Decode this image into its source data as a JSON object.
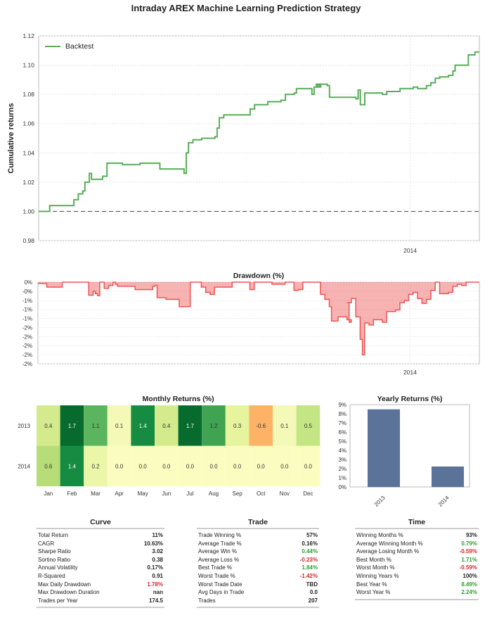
{
  "title": "Intraday AREX Machine Learning Prediction Strategy",
  "chart_data": [
    {
      "type": "line",
      "ylabel": "Cumulative returns",
      "ylim": [
        0.98,
        1.12
      ],
      "yticks": [
        "0.98",
        "1.00",
        "1.02",
        "1.04",
        "1.06",
        "1.08",
        "1.10",
        "1.12"
      ],
      "xticks": [
        "2014"
      ],
      "legend_position": "top-left",
      "grid": true,
      "baseline": 1.0,
      "series": [
        {
          "name": "Backtest",
          "color": "#5aad5a",
          "points": [
            [
              0,
              1.0
            ],
            [
              0.02,
              1.0
            ],
            [
              0.025,
              1.004
            ],
            [
              0.07,
              1.004
            ],
            [
              0.08,
              1.008
            ],
            [
              0.09,
              1.012
            ],
            [
              0.1,
              1.014
            ],
            [
              0.105,
              1.02
            ],
            [
              0.115,
              1.026
            ],
            [
              0.12,
              1.022
            ],
            [
              0.145,
              1.024
            ],
            [
              0.155,
              1.033
            ],
            [
              0.19,
              1.032
            ],
            [
              0.23,
              1.033
            ],
            [
              0.27,
              1.033
            ],
            [
              0.275,
              1.029
            ],
            [
              0.32,
              1.029
            ],
            [
              0.33,
              1.026
            ],
            [
              0.335,
              1.04
            ],
            [
              0.34,
              1.047
            ],
            [
              0.35,
              1.049
            ],
            [
              0.37,
              1.05
            ],
            [
              0.38,
              1.05
            ],
            [
              0.4,
              1.051
            ],
            [
              0.405,
              1.057
            ],
            [
              0.41,
              1.064
            ],
            [
              0.42,
              1.066
            ],
            [
              0.47,
              1.066
            ],
            [
              0.48,
              1.07
            ],
            [
              0.49,
              1.073
            ],
            [
              0.52,
              1.075
            ],
            [
              0.55,
              1.076
            ],
            [
              0.56,
              1.08
            ],
            [
              0.58,
              1.081
            ],
            [
              0.585,
              1.084
            ],
            [
              0.6,
              1.084
            ],
            [
              0.62,
              1.08
            ],
            [
              0.625,
              1.085
            ],
            [
              0.64,
              1.086
            ],
            [
              0.63,
              1.087
            ],
            [
              0.655,
              1.086
            ],
            [
              0.66,
              1.078
            ],
            [
              0.7,
              1.078
            ],
            [
              0.72,
              1.077
            ],
            [
              0.725,
              1.083
            ],
            [
              0.73,
              1.073
            ],
            [
              0.74,
              1.081
            ],
            [
              0.78,
              1.08
            ],
            [
              0.79,
              1.082
            ],
            [
              0.82,
              1.084
            ],
            [
              0.85,
              1.085
            ],
            [
              0.86,
              1.084
            ],
            [
              0.88,
              1.086
            ],
            [
              0.89,
              1.088
            ],
            [
              0.9,
              1.091
            ],
            [
              0.91,
              1.092
            ],
            [
              0.93,
              1.093
            ],
            [
              0.94,
              1.096
            ],
            [
              0.945,
              1.1
            ],
            [
              0.97,
              1.1
            ],
            [
              0.975,
              1.107
            ],
            [
              0.99,
              1.109
            ],
            [
              1.0,
              1.109
            ]
          ]
        }
      ]
    },
    {
      "type": "area",
      "title": "Drawdown (%)",
      "yticks": [
        "0%",
        "-0%",
        "-0%",
        "-0%",
        "-1%",
        "-1%",
        "-1%",
        "-1%",
        "-1%",
        "-1%",
        "-2%",
        "-2%",
        "-2%",
        "-2%",
        "-2%",
        "-2%",
        "-2%",
        "-2%",
        "-2%",
        "-2%"
      ],
      "xticks": [
        "2014"
      ],
      "ymin": -1.78,
      "grid": true,
      "color": "#ee5555",
      "points": [
        [
          0,
          -0.03
        ],
        [
          0.02,
          -0.12
        ],
        [
          0.05,
          -0.12
        ],
        [
          0.055,
          0
        ],
        [
          0.11,
          0
        ],
        [
          0.115,
          -0.32
        ],
        [
          0.125,
          -0.22
        ],
        [
          0.13,
          -0.28
        ],
        [
          0.135,
          -0.33
        ],
        [
          0.14,
          0
        ],
        [
          0.15,
          -0.15
        ],
        [
          0.16,
          -0.08
        ],
        [
          0.17,
          0
        ],
        [
          0.175,
          -0.05
        ],
        [
          0.18,
          -0.1
        ],
        [
          0.21,
          -0.1
        ],
        [
          0.22,
          -0.18
        ],
        [
          0.26,
          -0.1
        ],
        [
          0.265,
          -0.08
        ],
        [
          0.27,
          -0.38
        ],
        [
          0.29,
          -0.42
        ],
        [
          0.3,
          -0.42
        ],
        [
          0.32,
          -0.6
        ],
        [
          0.335,
          -0.6
        ],
        [
          0.345,
          0
        ],
        [
          0.37,
          -0.12
        ],
        [
          0.38,
          -0.25
        ],
        [
          0.39,
          -0.3
        ],
        [
          0.4,
          -0.12
        ],
        [
          0.43,
          -0.12
        ],
        [
          0.44,
          0
        ],
        [
          0.47,
          0
        ],
        [
          0.48,
          -0.18
        ],
        [
          0.49,
          0
        ],
        [
          0.52,
          0
        ],
        [
          0.53,
          -0.05
        ],
        [
          0.56,
          0
        ],
        [
          0.58,
          -0.2
        ],
        [
          0.59,
          -0.18
        ],
        [
          0.6,
          0
        ],
        [
          0.63,
          0
        ],
        [
          0.64,
          -0.3
        ],
        [
          0.65,
          -0.42
        ],
        [
          0.66,
          -0.6
        ],
        [
          0.665,
          -0.95
        ],
        [
          0.68,
          -0.85
        ],
        [
          0.7,
          -0.92
        ],
        [
          0.705,
          -0.98
        ],
        [
          0.71,
          -0.92
        ],
        [
          0.705,
          -0.5
        ],
        [
          0.7,
          -0.5
        ],
        [
          0.71,
          -0.4
        ],
        [
          0.72,
          -0.85
        ],
        [
          0.73,
          -1.4
        ],
        [
          0.735,
          -1.78
        ],
        [
          0.74,
          -1.0
        ],
        [
          0.75,
          -1.05
        ],
        [
          0.76,
          -0.92
        ],
        [
          0.78,
          -0.98
        ],
        [
          0.79,
          -0.72
        ],
        [
          0.8,
          -0.72
        ],
        [
          0.81,
          -0.68
        ],
        [
          0.82,
          -0.5
        ],
        [
          0.83,
          -0.45
        ],
        [
          0.84,
          -0.3
        ],
        [
          0.85,
          -0.25
        ],
        [
          0.86,
          -0.4
        ],
        [
          0.87,
          -0.52
        ],
        [
          0.88,
          -0.42
        ],
        [
          0.89,
          -0.2
        ],
        [
          0.9,
          0
        ],
        [
          0.91,
          -0.28
        ],
        [
          0.93,
          -0.25
        ],
        [
          0.94,
          -0.1
        ],
        [
          0.95,
          -0.05
        ],
        [
          0.96,
          -0.08
        ],
        [
          0.97,
          0
        ],
        [
          1.0,
          0
        ]
      ]
    },
    {
      "type": "heatmap",
      "title": "Monthly Returns (%)",
      "rows": [
        "2013",
        "2014"
      ],
      "columns": [
        "Jan",
        "Feb",
        "Mar",
        "Apr",
        "May",
        "Jun",
        "Jul",
        "Aug",
        "Sep",
        "Oct",
        "Nov",
        "Dec"
      ],
      "values": [
        [
          0.4,
          1.7,
          1.1,
          0.1,
          1.4,
          0.4,
          1.7,
          1.2,
          0.3,
          -0.6,
          0.1,
          0.5
        ],
        [
          0.6,
          1.4,
          0.2,
          0.0,
          0.0,
          0.0,
          0.0,
          0.0,
          0.0,
          0.0,
          0.0,
          0.0
        ]
      ],
      "labels": [
        [
          "0.4",
          "1.7",
          "1.1",
          "0.1",
          "1.4",
          "0.4",
          "1.7",
          "1.2",
          "0.3",
          "-0.6",
          "0.1",
          "0.5"
        ],
        [
          "0.6",
          "1.4",
          "0.2",
          "0.0",
          "0.0",
          "0.0",
          "0.0",
          "0.0",
          "0.0",
          "0.0",
          "0.0",
          "0.0"
        ]
      ],
      "colors": [
        [
          "#d3eb8c",
          "#066b2d",
          "#5bb55f",
          "#f4f9b8",
          "#158c42",
          "#d3eb8c",
          "#066b2d",
          "#3fa351",
          "#e6f49d",
          "#fdb366",
          "#f4f9b8",
          "#c3e583"
        ],
        [
          "#b6dd78",
          "#158c42",
          "#ecf6a8",
          "#fbfdc0",
          "#fbfdc0",
          "#fbfdc0",
          "#fbfdc0",
          "#fbfdc0",
          "#fbfdc0",
          "#fbfdc0",
          "#fbfdc0",
          "#fbfdc0"
        ]
      ]
    },
    {
      "type": "bar",
      "title": "Yearly Returns (%)",
      "categories": [
        "2013",
        "2014"
      ],
      "values": [
        8.49,
        2.24
      ],
      "ylim": [
        0,
        9
      ],
      "yticks": [
        "0%",
        "1%",
        "2%",
        "3%",
        "4%",
        "5%",
        "6%",
        "7%",
        "8%",
        "9%"
      ],
      "color": "#5b7399"
    },
    {
      "type": "table",
      "title": "Curve",
      "rows": [
        [
          "Total Return",
          "11%",
          ""
        ],
        [
          "CAGR",
          "10.63%",
          ""
        ],
        [
          "Sharpe Ratio",
          "3.02",
          ""
        ],
        [
          "Sortino Ratio",
          "0.38",
          ""
        ],
        [
          "Annual Volatility",
          "0.17%",
          ""
        ],
        [
          "R-Squared",
          "0.91",
          ""
        ],
        [
          "Max Daily Drawdown",
          "1.78%",
          "neg"
        ],
        [
          "Max Drawdown Duration",
          "nan",
          ""
        ],
        [
          "Trades per Year",
          "174.5",
          ""
        ]
      ]
    },
    {
      "type": "table",
      "title": "Trade",
      "rows": [
        [
          "Trade Winning %",
          "57%",
          ""
        ],
        [
          "Average Trade %",
          "0.16%",
          ""
        ],
        [
          "Average Win %",
          "0.44%",
          "pos"
        ],
        [
          "Average Loss %",
          "-0.23%",
          "neg"
        ],
        [
          "Best Trade %",
          "1.84%",
          "pos"
        ],
        [
          "Worst Trade %",
          "-1.42%",
          "neg"
        ],
        [
          "Worst Trade Date",
          "TBD",
          ""
        ],
        [
          "Avg Days in Trade",
          "0.0",
          ""
        ],
        [
          "Trades",
          "207",
          ""
        ]
      ]
    },
    {
      "type": "table",
      "title": "Time",
      "rows": [
        [
          "Winning Months %",
          "93%",
          ""
        ],
        [
          "Average Winning Month %",
          "0.79%",
          "pos"
        ],
        [
          "Average Losing Month %",
          "-0.59%",
          "neg"
        ],
        [
          "Best Month %",
          "1.71%",
          "pos"
        ],
        [
          "Worst Month %",
          "-0.59%",
          "neg"
        ],
        [
          "Winning Years %",
          "100%",
          ""
        ],
        [
          "Best Year %",
          "8.49%",
          "pos"
        ],
        [
          "Worst Year %",
          "2.24%",
          "pos"
        ]
      ]
    }
  ]
}
